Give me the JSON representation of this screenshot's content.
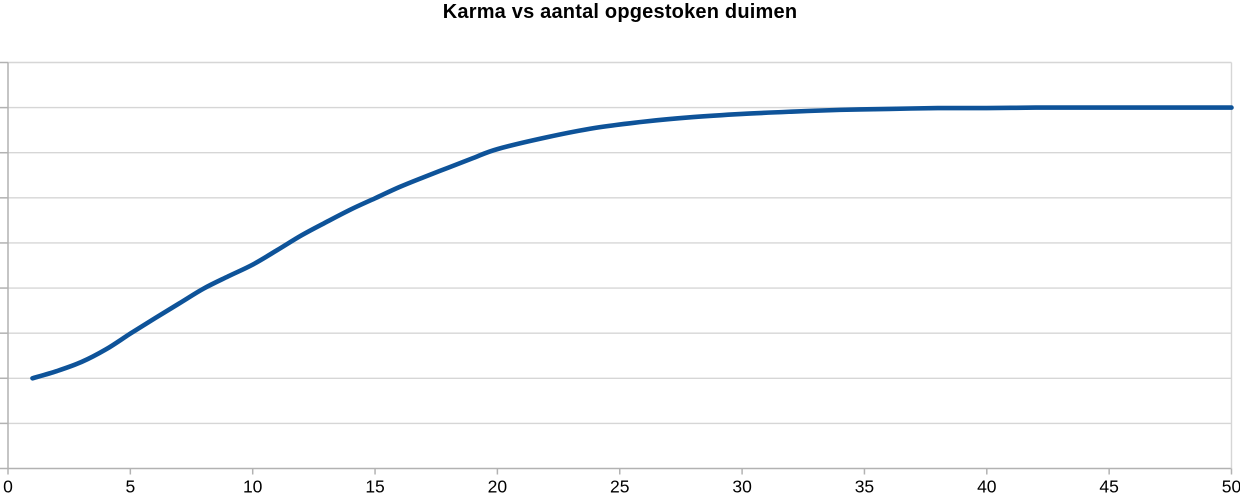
{
  "chart_data": {
    "type": "line",
    "title": "Karma vs aantal opgestoken duimen",
    "xlabel": "",
    "ylabel": "",
    "xlim": [
      0,
      50
    ],
    "ylim": [
      0,
      9
    ],
    "x_tick_values": [
      0,
      5,
      10,
      15,
      20,
      25,
      30,
      35,
      40,
      45,
      50
    ],
    "x_tick_labels": [
      "0",
      "5",
      "10",
      "15",
      "20",
      "25",
      "30",
      "35",
      "40",
      "45",
      "50"
    ],
    "y_tick_values": [
      0,
      1,
      2,
      3,
      4,
      5,
      6,
      7,
      8,
      9
    ],
    "y_tick_labels_visible": false,
    "grid": "horizontal",
    "legend": "none",
    "series": [
      {
        "name": "karma",
        "color": "#0e5399",
        "x": [
          1,
          2,
          3,
          4,
          5,
          6,
          7,
          8,
          9,
          10,
          11,
          12,
          13,
          14,
          15,
          16,
          17,
          18,
          19,
          20,
          22,
          24,
          26,
          28,
          30,
          32,
          34,
          36,
          38,
          40,
          42,
          44,
          46,
          48,
          50
        ],
        "y": [
          2.0,
          2.16,
          2.36,
          2.64,
          2.99,
          3.33,
          3.66,
          3.99,
          4.26,
          4.52,
          4.84,
          5.17,
          5.46,
          5.74,
          5.99,
          6.24,
          6.46,
          6.67,
          6.88,
          7.08,
          7.34,
          7.55,
          7.69,
          7.79,
          7.86,
          7.91,
          7.95,
          7.97,
          7.99,
          7.99,
          8.0,
          8.0,
          8.0,
          8.0,
          8.0
        ]
      }
    ],
    "colors": {
      "line": "#0e5399",
      "gridline": "#d6d6d6",
      "axis": "#b2b2b2",
      "title_text": "#000000",
      "tick_label_text": "#000000",
      "background": "#ffffff"
    }
  }
}
